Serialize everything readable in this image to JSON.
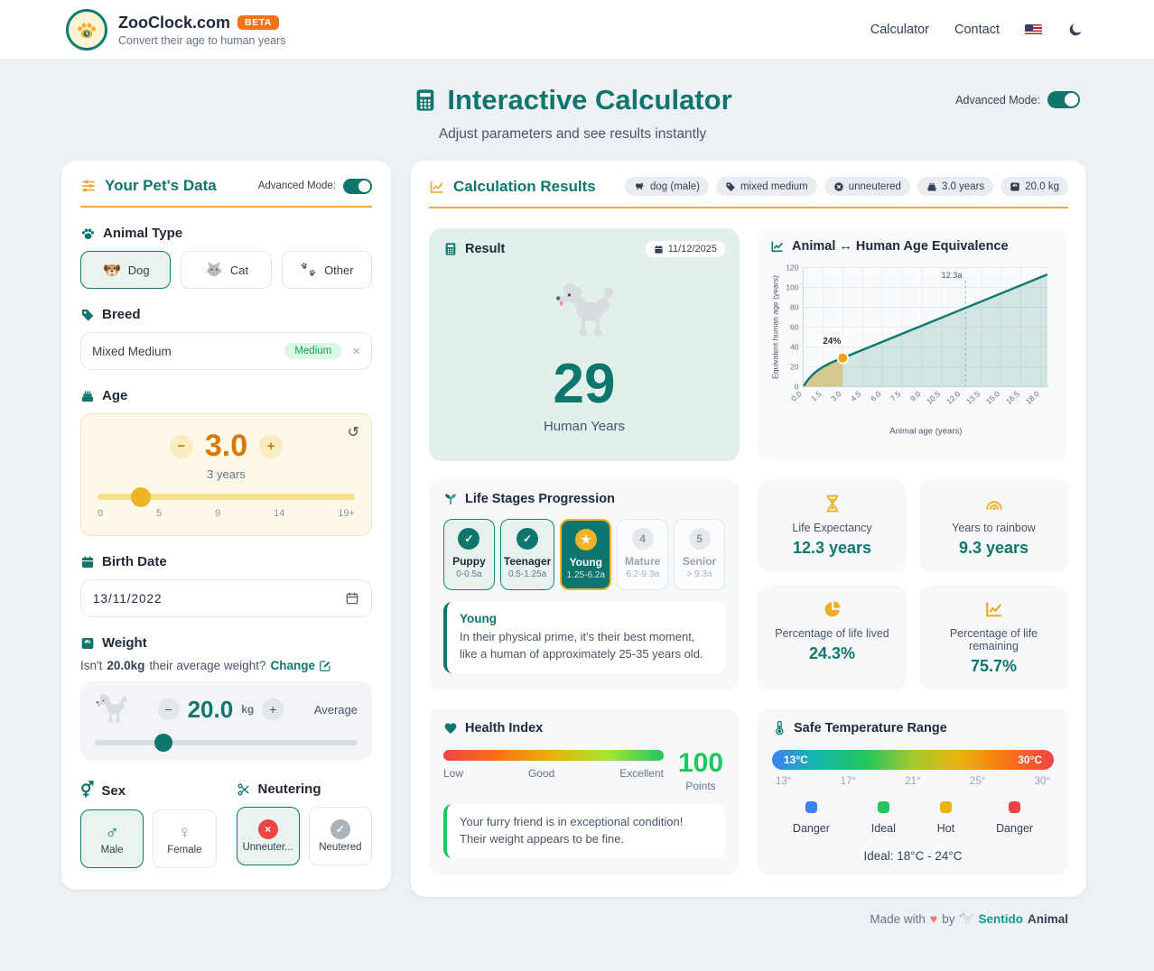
{
  "theme": {
    "teal": "#0f766e",
    "orange": "#f2a93b",
    "amber": "#d97706",
    "green": "#22c55e",
    "red": "#ef4444",
    "beta_orange": "#f97316"
  },
  "header": {
    "brand": "ZooClock.com",
    "beta_badge": "BETA",
    "tagline": "Convert their age to human years",
    "nav": [
      {
        "label": "Calculator"
      },
      {
        "label": "Contact"
      }
    ]
  },
  "hero": {
    "title": "Interactive Calculator",
    "subtitle": "Adjust parameters and see results instantly",
    "advanced_mode_label": "Advanced Mode:"
  },
  "pet_form": {
    "title": "Your Pet's Data",
    "advanced_mode_label": "Advanced Mode:",
    "animal_type": {
      "label": "Animal Type",
      "options": [
        {
          "label": "Dog"
        },
        {
          "label": "Cat"
        },
        {
          "label": "Other"
        }
      ],
      "selected": "Dog"
    },
    "breed": {
      "label": "Breed",
      "value": "Mixed Medium",
      "size_badge": "Medium",
      "clear": "×"
    },
    "age": {
      "label": "Age",
      "minus": "−",
      "value": "3.0",
      "plus": "+",
      "reset": "↺",
      "caption": "3 years",
      "ticks": [
        "0",
        "5",
        "9",
        "14",
        "19+"
      ],
      "slider_percent": 17
    },
    "birth_date": {
      "label": "Birth Date",
      "value": "13/11/2022"
    },
    "weight": {
      "label": "Weight",
      "question_prefix": "Isn't",
      "question_value": "20.0kg",
      "question_suffix": "their average weight?",
      "change_label": "Change",
      "minus": "−",
      "value": "20.0",
      "unit": "kg",
      "plus": "+",
      "tag": "Average",
      "slider_percent": 26
    },
    "sex": {
      "label": "Sex",
      "options": [
        {
          "label": "Male",
          "symbol": "♂"
        },
        {
          "label": "Female",
          "symbol": "♀"
        }
      ],
      "selected": "Male"
    },
    "neutering": {
      "label": "Neutering",
      "options": [
        {
          "label": "Unneuter...",
          "mark": "×"
        },
        {
          "label": "Neutered",
          "mark": "✓"
        }
      ],
      "selected": "Unneuter..."
    }
  },
  "results": {
    "title": "Calculation Results",
    "badges": [
      {
        "label": "dog (male)"
      },
      {
        "label": "mixed medium"
      },
      {
        "label": "unneutered"
      },
      {
        "label": "3.0 years"
      },
      {
        "label": "20.0 kg"
      }
    ],
    "result_card": {
      "title": "Result",
      "date": "11/12/2025",
      "value": "29",
      "unit": "Human Years"
    },
    "stages": {
      "title": "Life Stages Progression",
      "items": [
        {
          "name": "Puppy",
          "range": "0-0.5a",
          "mark": "✓",
          "state": "done"
        },
        {
          "name": "Teenager",
          "range": "0.5-1.25a",
          "mark": "✓",
          "state": "done"
        },
        {
          "name": "Young",
          "range": "1.25-6.2a",
          "mark": "★",
          "state": "current"
        },
        {
          "name": "Mature",
          "range": "6.2-9.3a",
          "mark": "4",
          "state": "future"
        },
        {
          "name": "Senior",
          "range": "> 9.3a",
          "mark": "5",
          "state": "future"
        }
      ],
      "current_name": "Young",
      "current_description": "In their physical prime, it's their best moment, like a human of approximately 25-35 years old."
    },
    "stats": [
      {
        "label": "Life Expectancy",
        "value": "12.3 years",
        "icon": "hourglass-icon"
      },
      {
        "label": "Years to rainbow",
        "value": "9.3 years",
        "icon": "rainbow-icon"
      },
      {
        "label": "Percentage of life lived",
        "value": "24.3%",
        "icon": "pie-icon"
      },
      {
        "label": "Percentage of life remaining",
        "value": "75.7%",
        "icon": "chart-line-icon"
      }
    ],
    "health": {
      "title": "Health Index",
      "scale": [
        "Low",
        "Good",
        "Excellent"
      ],
      "score": "100",
      "score_unit": "Points",
      "message": "Your furry friend is in exceptional condition! Their weight appears to be fine."
    },
    "temperature": {
      "title": "Safe Temperature Range",
      "bar_min": "13°C",
      "bar_max": "30°C",
      "ticks": [
        "13°",
        "17°",
        "21°",
        "25°",
        "30°"
      ],
      "legend": [
        {
          "color": "#3b82f6",
          "label": "Danger"
        },
        {
          "color": "#22c55e",
          "label": "Ideal"
        },
        {
          "color": "#eab308",
          "label": "Hot"
        },
        {
          "color": "#ef4444",
          "label": "Danger"
        }
      ],
      "ideal": "Ideal: 18°C - 24°C"
    }
  },
  "chart_data": {
    "type": "area",
    "title": "Animal ↔ Human Age Equivalence",
    "xlabel": "Animal age (years)",
    "ylabel": "Equivalent human age (years)",
    "xlim": [
      0,
      18.6
    ],
    "ylim": [
      0,
      120
    ],
    "x_ticks": [
      0.0,
      1.5,
      3.0,
      4.5,
      6.0,
      7.5,
      9.0,
      10.5,
      12.0,
      13.5,
      15.0,
      16.5,
      18.0
    ],
    "y_ticks": [
      0,
      20,
      40,
      60,
      80,
      100,
      120
    ],
    "grid": true,
    "series": [
      {
        "name": "Equivalent human age",
        "points": [
          [
            0,
            0
          ],
          [
            0.25,
            5
          ],
          [
            0.5,
            9
          ],
          [
            0.75,
            12.5
          ],
          [
            1,
            15.5
          ],
          [
            1.5,
            20
          ],
          [
            2,
            23.5
          ],
          [
            2.5,
            26.5
          ],
          [
            3,
            29
          ],
          [
            18.5,
            113
          ]
        ]
      }
    ],
    "current_point": {
      "x": 3,
      "y": 29,
      "label": "24%"
    },
    "life_expectancy_line": {
      "x": 12.3,
      "label": "12.3a"
    },
    "highlight_region_end": 3
  },
  "footer": {
    "prefix": "Made with",
    "heart": "♥",
    "by": "by",
    "brand_primary": "Sentido",
    "brand_secondary": "Animal"
  }
}
